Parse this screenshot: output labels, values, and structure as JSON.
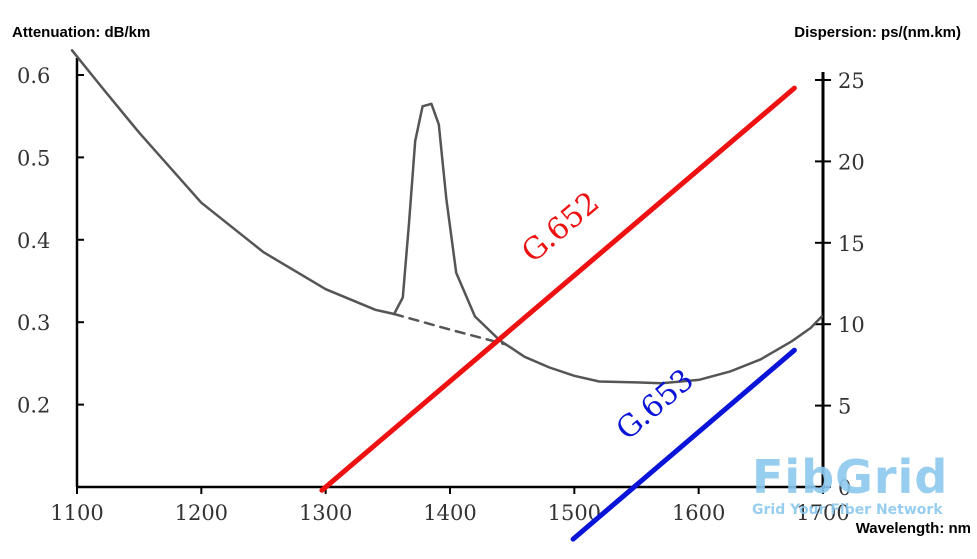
{
  "header": {
    "left_axis_title": "Attenuation: dB/km",
    "right_axis_title": "Dispersion: ps/(nm.km)",
    "x_axis_title": "Wavelength: nm"
  },
  "watermark": {
    "brand": "FibGrid",
    "tagline": "Grid Your Fiber Network"
  },
  "chart_data": {
    "type": "line",
    "x": {
      "label": "Wavelength: nm",
      "ticks": [
        1100,
        1200,
        1300,
        1400,
        1500,
        1600,
        1700
      ],
      "lim": [
        1100,
        1700
      ]
    },
    "y_left": {
      "label": "Attenuation: dB/km",
      "ticks": [
        0.2,
        0.3,
        0.4,
        0.5,
        0.6
      ],
      "tick_labels": [
        "0.2",
        "0.3",
        "0.4",
        "0.5",
        "0.6"
      ],
      "lim": [
        0.1,
        0.6
      ]
    },
    "y_right": {
      "label": "Dispersion: ps/(nm.km)",
      "ticks": [
        0,
        5,
        10,
        15,
        20,
        25
      ],
      "lim": [
        0,
        25
      ]
    },
    "series": [
      {
        "axis": "left",
        "color": "#555555",
        "style": "solid",
        "points": [
          [
            1096,
            0.63
          ],
          [
            1120,
            0.585
          ],
          [
            1150,
            0.53
          ],
          [
            1200,
            0.445
          ],
          [
            1250,
            0.385
          ],
          [
            1300,
            0.34
          ],
          [
            1340,
            0.315
          ],
          [
            1355,
            0.31
          ],
          [
            1362,
            0.33
          ],
          [
            1367,
            0.42
          ],
          [
            1372,
            0.52
          ],
          [
            1378,
            0.562
          ],
          [
            1385,
            0.565
          ],
          [
            1391,
            0.54
          ],
          [
            1397,
            0.45
          ],
          [
            1405,
            0.36
          ],
          [
            1420,
            0.307
          ],
          [
            1440,
            0.278
          ],
          [
            1460,
            0.258
          ],
          [
            1480,
            0.245
          ],
          [
            1500,
            0.235
          ],
          [
            1520,
            0.228
          ],
          [
            1550,
            0.227
          ],
          [
            1570,
            0.226
          ],
          [
            1600,
            0.23
          ],
          [
            1625,
            0.24
          ],
          [
            1650,
            0.255
          ],
          [
            1675,
            0.277
          ],
          [
            1690,
            0.293
          ],
          [
            1699,
            0.307
          ]
        ]
      },
      {
        "axis": "left",
        "color": "#555555",
        "style": "dashed",
        "points": [
          [
            1355,
            0.31
          ],
          [
            1400,
            0.291
          ],
          [
            1445,
            0.273
          ]
        ]
      },
      {
        "name": "G.652",
        "axis": "right",
        "color": "#ee1111",
        "style": "solid",
        "points": [
          [
            1297,
            -0.2
          ],
          [
            1677,
            24.5
          ]
        ]
      },
      {
        "name": "G.653",
        "axis": "right",
        "color": "#0a14d8",
        "style": "solid",
        "points": [
          [
            1499,
            -3.2
          ],
          [
            1677,
            8.4
          ]
        ]
      }
    ],
    "grid": false,
    "legend": "none",
    "annotations": [
      "G.652",
      "G.653"
    ]
  },
  "colors": {
    "attenuation": "#555555",
    "g652": "#ee1111",
    "g653": "#0a14d8",
    "axis": "#000000",
    "watermark": "#8cc8ee"
  }
}
